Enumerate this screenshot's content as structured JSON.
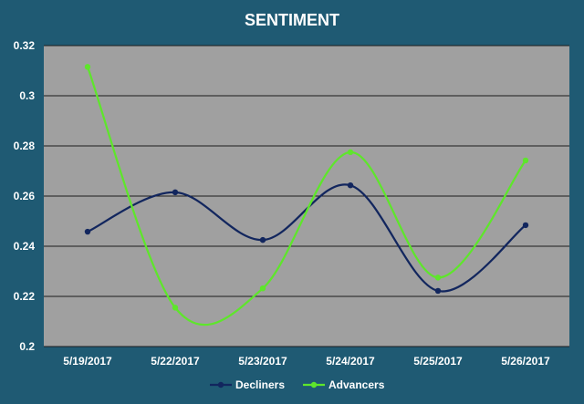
{
  "chart_data": {
    "type": "line",
    "title": "SENTIMENT",
    "xlabel": "",
    "ylabel": "",
    "categories": [
      "5/19/2017",
      "5/22/2017",
      "5/23/2017",
      "5/24/2017",
      "5/25/2017",
      "5/26/2017"
    ],
    "yticks": [
      "0.2",
      "0.22",
      "0.24",
      "0.26",
      "0.28",
      "0.3",
      "0.32"
    ],
    "ylim": [
      0.2,
      0.32
    ],
    "grid": true,
    "legend": "bottom",
    "plot_background": "#a0a0a0",
    "series": [
      {
        "name": "Decliners",
        "color": "#12265e",
        "values": [
          0.2458,
          0.2615,
          0.2425,
          0.2643,
          0.2222,
          0.2484
        ]
      },
      {
        "name": "Advancers",
        "color": "#5ee62b",
        "values": [
          0.3115,
          0.2155,
          0.2232,
          0.2775,
          0.2275,
          0.2742
        ]
      }
    ]
  }
}
